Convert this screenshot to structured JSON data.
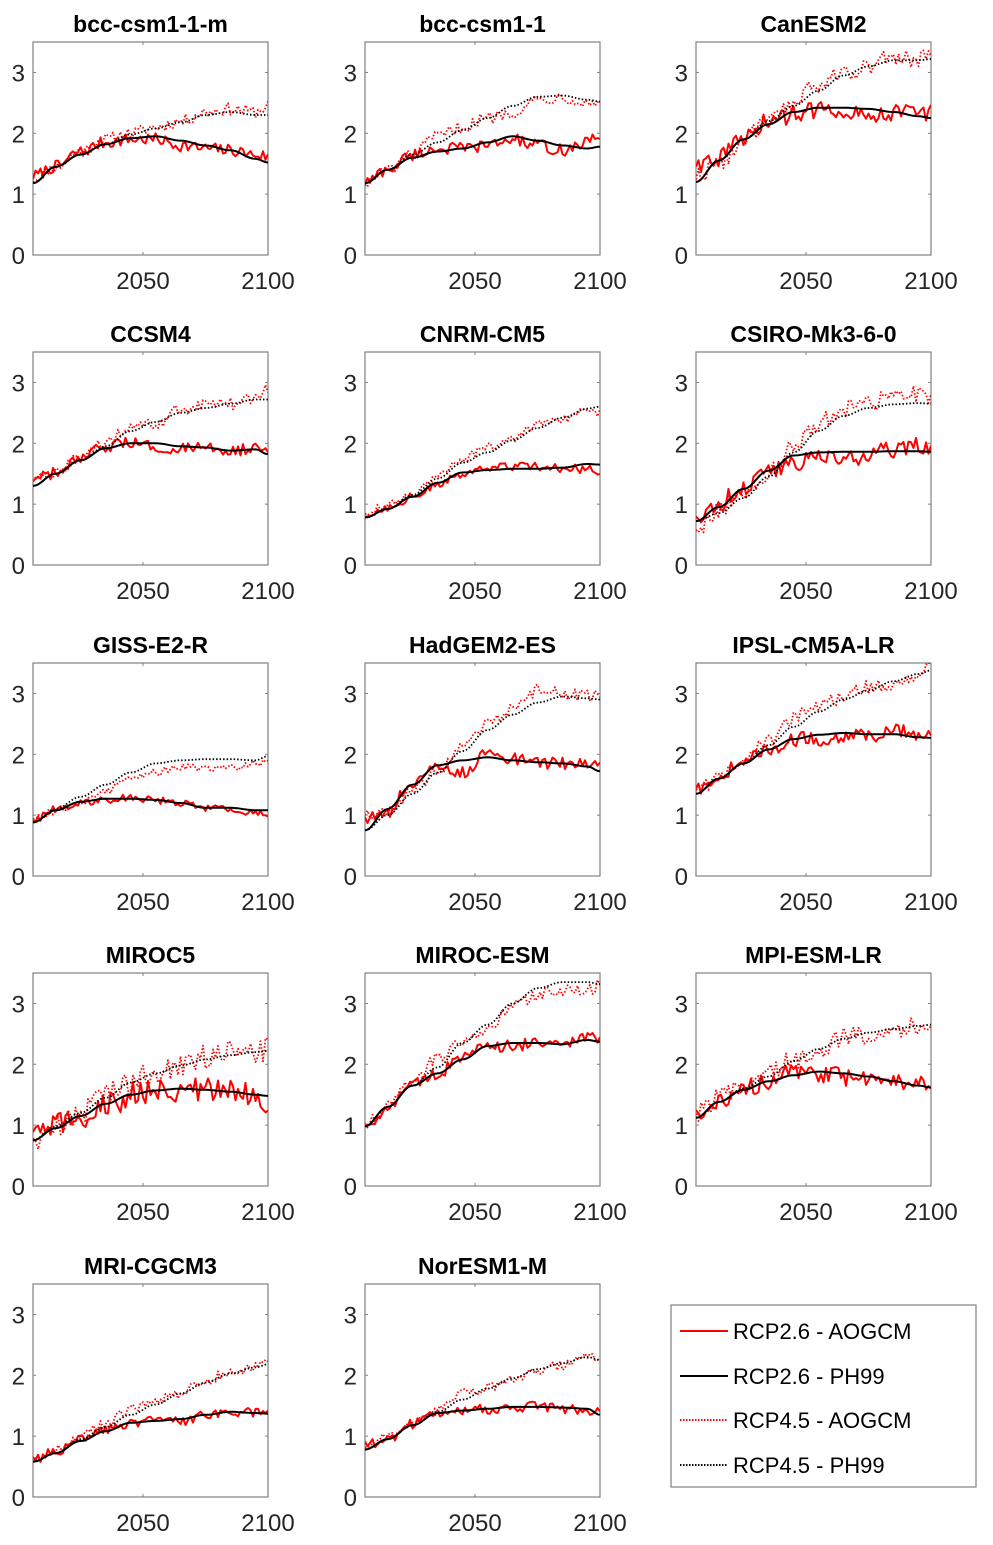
{
  "chart_data": {
    "type": "line",
    "layout": "small-multiples",
    "xlim": [
      2006,
      2100
    ],
    "ylim": [
      0,
      3.5
    ],
    "xticks": [
      2050,
      2100
    ],
    "yticks": [
      0,
      1,
      2,
      3
    ],
    "xlabel": "",
    "ylabel": "",
    "grid": false,
    "legend": {
      "placement": "bottom-right",
      "entries": [
        {
          "label": "RCP2.6 - AOGCM",
          "color": "#ff0000",
          "style": "solid"
        },
        {
          "label": "RCP2.6 - PH99",
          "color": "#000000",
          "style": "solid"
        },
        {
          "label": "RCP4.5 - AOGCM",
          "color": "#ff0000",
          "style": "dotted"
        },
        {
          "label": "RCP4.5 - PH99",
          "color": "#000000",
          "style": "dotted"
        }
      ]
    },
    "x_knots": [
      2006,
      2015,
      2025,
      2035,
      2045,
      2055,
      2065,
      2075,
      2085,
      2095,
      2100
    ],
    "panels": [
      {
        "title": "bcc-csm1-1-m",
        "noise": 0.1,
        "rcp26_ph99": [
          1.18,
          1.45,
          1.65,
          1.82,
          1.92,
          1.95,
          1.88,
          1.8,
          1.72,
          1.58,
          1.52
        ],
        "rcp26_aogcm": [
          1.3,
          1.45,
          1.7,
          1.85,
          1.9,
          1.9,
          1.8,
          1.75,
          1.72,
          1.65,
          1.62
        ],
        "rcp45_ph99": [
          1.18,
          1.45,
          1.65,
          1.82,
          1.98,
          2.08,
          2.18,
          2.3,
          2.35,
          2.3,
          2.3
        ],
        "rcp45_aogcm": [
          1.25,
          1.45,
          1.7,
          1.9,
          2.0,
          2.1,
          2.2,
          2.35,
          2.4,
          2.35,
          2.45
        ]
      },
      {
        "title": "bcc-csm1-1",
        "noise": 0.1,
        "rcp26_ph99": [
          1.18,
          1.4,
          1.6,
          1.7,
          1.75,
          1.85,
          1.95,
          1.88,
          1.8,
          1.75,
          1.78
        ],
        "rcp26_aogcm": [
          1.2,
          1.4,
          1.65,
          1.75,
          1.75,
          1.8,
          1.9,
          1.8,
          1.72,
          1.85,
          1.95
        ],
        "rcp45_ph99": [
          1.18,
          1.4,
          1.65,
          1.85,
          2.05,
          2.25,
          2.45,
          2.6,
          2.62,
          2.55,
          2.52
        ],
        "rcp45_aogcm": [
          1.2,
          1.4,
          1.65,
          1.95,
          2.1,
          2.25,
          2.35,
          2.55,
          2.6,
          2.5,
          2.5
        ]
      },
      {
        "title": "CanESM2",
        "noise": 0.15,
        "rcp26_ph99": [
          1.2,
          1.55,
          1.9,
          2.15,
          2.35,
          2.42,
          2.42,
          2.4,
          2.35,
          2.28,
          2.25
        ],
        "rcp26_aogcm": [
          1.5,
          1.6,
          1.9,
          2.2,
          2.3,
          2.4,
          2.4,
          2.3,
          2.35,
          2.35,
          2.35
        ],
        "rcp45_ph99": [
          1.2,
          1.55,
          1.9,
          2.2,
          2.45,
          2.7,
          2.95,
          3.1,
          3.2,
          3.2,
          3.22
        ],
        "rcp45_aogcm": [
          1.3,
          1.5,
          1.9,
          2.2,
          2.5,
          2.8,
          3.0,
          3.1,
          3.25,
          3.2,
          3.3
        ]
      },
      {
        "title": "CCSM4",
        "noise": 0.1,
        "rcp26_ph99": [
          1.3,
          1.5,
          1.72,
          1.92,
          2.0,
          2.0,
          1.95,
          1.93,
          1.88,
          1.9,
          1.82
        ],
        "rcp26_aogcm": [
          1.4,
          1.5,
          1.72,
          1.95,
          2.0,
          1.95,
          1.9,
          1.92,
          1.9,
          1.9,
          1.85
        ],
        "rcp45_ph99": [
          1.3,
          1.5,
          1.72,
          1.95,
          2.2,
          2.35,
          2.5,
          2.58,
          2.65,
          2.72,
          2.72
        ],
        "rcp45_aogcm": [
          1.4,
          1.5,
          1.75,
          2.0,
          2.25,
          2.3,
          2.55,
          2.65,
          2.65,
          2.75,
          2.9
        ]
      },
      {
        "title": "CNRM-CM5",
        "noise": 0.07,
        "rcp26_ph99": [
          0.78,
          0.92,
          1.12,
          1.35,
          1.52,
          1.56,
          1.58,
          1.58,
          1.6,
          1.66,
          1.65
        ],
        "rcp26_aogcm": [
          0.8,
          0.95,
          1.12,
          1.3,
          1.5,
          1.58,
          1.62,
          1.62,
          1.58,
          1.58,
          1.55
        ],
        "rcp45_ph99": [
          0.78,
          0.92,
          1.15,
          1.42,
          1.68,
          1.85,
          2.05,
          2.25,
          2.42,
          2.57,
          2.6
        ],
        "rcp45_aogcm": [
          0.85,
          0.98,
          1.15,
          1.45,
          1.75,
          1.95,
          2.05,
          2.3,
          2.4,
          2.58,
          2.5
        ]
      },
      {
        "title": "CSIRO-Mk3-6-0",
        "noise": 0.15,
        "rcp26_ph99": [
          0.72,
          0.95,
          1.25,
          1.55,
          1.8,
          1.85,
          1.86,
          1.86,
          1.87,
          1.87,
          1.86
        ],
        "rcp26_aogcm": [
          0.8,
          1.0,
          1.3,
          1.55,
          1.7,
          1.75,
          1.75,
          1.8,
          1.9,
          2.0,
          1.9
        ],
        "rcp45_ph99": [
          0.72,
          0.85,
          1.1,
          1.45,
          1.85,
          2.2,
          2.45,
          2.58,
          2.64,
          2.66,
          2.65
        ],
        "rcp45_aogcm": [
          0.6,
          0.9,
          1.15,
          1.5,
          1.95,
          2.35,
          2.55,
          2.65,
          2.75,
          2.8,
          2.75
        ]
      },
      {
        "title": "GISS-E2-R",
        "noise": 0.06,
        "rcp26_ph99": [
          0.88,
          1.08,
          1.22,
          1.27,
          1.27,
          1.25,
          1.2,
          1.12,
          1.12,
          1.08,
          1.08
        ],
        "rcp26_aogcm": [
          0.92,
          1.1,
          1.2,
          1.25,
          1.3,
          1.25,
          1.2,
          1.12,
          1.1,
          1.05,
          1.0
        ],
        "rcp45_ph99": [
          0.88,
          1.1,
          1.3,
          1.5,
          1.7,
          1.85,
          1.9,
          1.92,
          1.92,
          1.9,
          1.97
        ],
        "rcp45_aogcm": [
          0.95,
          1.05,
          1.2,
          1.4,
          1.6,
          1.7,
          1.8,
          1.75,
          1.78,
          1.85,
          1.9
        ]
      },
      {
        "title": "HadGEM2-ES",
        "noise": 0.1,
        "rcp26_ph99": [
          0.75,
          1.1,
          1.5,
          1.82,
          1.9,
          1.95,
          1.9,
          1.87,
          1.85,
          1.8,
          1.72
        ],
        "rcp26_aogcm": [
          0.95,
          1.05,
          1.55,
          1.8,
          1.7,
          2.0,
          1.92,
          1.85,
          1.85,
          1.85,
          1.78
        ],
        "rcp45_ph99": [
          0.75,
          1.0,
          1.35,
          1.7,
          2.05,
          2.4,
          2.65,
          2.85,
          2.95,
          2.92,
          2.9
        ],
        "rcp45_aogcm": [
          1.0,
          1.05,
          1.4,
          1.75,
          2.1,
          2.5,
          2.75,
          3.05,
          3.0,
          2.95,
          3.0
        ]
      },
      {
        "title": "IPSL-CM5A-LR",
        "noise": 0.12,
        "rcp26_ph99": [
          1.35,
          1.6,
          1.85,
          2.08,
          2.25,
          2.32,
          2.35,
          2.33,
          2.33,
          2.28,
          2.27
        ],
        "rcp26_aogcm": [
          1.4,
          1.65,
          1.9,
          2.05,
          2.25,
          2.25,
          2.3,
          2.3,
          2.4,
          2.3,
          2.3
        ],
        "rcp45_ph99": [
          1.35,
          1.6,
          1.85,
          2.15,
          2.45,
          2.7,
          2.9,
          3.05,
          3.2,
          3.32,
          3.38
        ],
        "rcp45_aogcm": [
          1.4,
          1.6,
          1.9,
          2.2,
          2.6,
          2.8,
          2.95,
          3.1,
          3.15,
          3.25,
          3.45
        ]
      },
      {
        "title": "MIROC5",
        "noise": 0.22,
        "rcp26_ph99": [
          0.75,
          0.95,
          1.15,
          1.35,
          1.5,
          1.57,
          1.6,
          1.58,
          1.55,
          1.5,
          1.48
        ],
        "rcp26_aogcm": [
          0.8,
          1.0,
          1.15,
          1.3,
          1.5,
          1.55,
          1.6,
          1.55,
          1.55,
          1.5,
          1.4
        ],
        "rcp45_ph99": [
          0.75,
          0.98,
          1.2,
          1.45,
          1.7,
          1.85,
          1.98,
          2.08,
          2.15,
          2.2,
          2.22
        ],
        "rcp45_aogcm": [
          0.75,
          1.0,
          1.2,
          1.5,
          1.7,
          1.85,
          2.0,
          2.1,
          2.2,
          2.2,
          2.3
        ]
      },
      {
        "title": "MIROC-ESM",
        "noise": 0.1,
        "rcp26_ph99": [
          0.98,
          1.3,
          1.65,
          1.85,
          2.08,
          2.3,
          2.35,
          2.35,
          2.33,
          2.4,
          2.37
        ],
        "rcp26_aogcm": [
          0.95,
          1.3,
          1.7,
          1.85,
          2.1,
          2.28,
          2.3,
          2.35,
          2.35,
          2.45,
          2.4
        ],
        "rcp45_ph99": [
          0.98,
          1.3,
          1.65,
          1.95,
          2.35,
          2.65,
          3.0,
          3.25,
          3.35,
          3.35,
          3.32
        ],
        "rcp45_aogcm": [
          1.0,
          1.3,
          1.7,
          2.1,
          2.35,
          2.55,
          2.95,
          3.15,
          3.2,
          3.2,
          3.3
        ]
      },
      {
        "title": "MPI-ESM-LR",
        "noise": 0.16,
        "rcp26_ph99": [
          1.12,
          1.38,
          1.58,
          1.72,
          1.82,
          1.88,
          1.85,
          1.8,
          1.72,
          1.65,
          1.62
        ],
        "rcp26_aogcm": [
          1.15,
          1.4,
          1.6,
          1.75,
          1.85,
          1.8,
          1.8,
          1.75,
          1.7,
          1.7,
          1.65
        ],
        "rcp45_ph99": [
          1.12,
          1.38,
          1.6,
          1.8,
          2.05,
          2.25,
          2.42,
          2.52,
          2.58,
          2.63,
          2.65
        ],
        "rcp45_aogcm": [
          1.2,
          1.45,
          1.6,
          1.9,
          2.05,
          2.25,
          2.45,
          2.5,
          2.6,
          2.6,
          2.7
        ]
      },
      {
        "title": "MRI-CGCM3",
        "noise": 0.08,
        "rcp26_ph99": [
          0.58,
          0.72,
          0.92,
          1.08,
          1.22,
          1.25,
          1.28,
          1.35,
          1.4,
          1.38,
          1.37
        ],
        "rcp26_aogcm": [
          0.6,
          0.75,
          0.95,
          1.1,
          1.2,
          1.25,
          1.25,
          1.35,
          1.4,
          1.38,
          1.35
        ],
        "rcp45_ph99": [
          0.58,
          0.72,
          0.95,
          1.15,
          1.35,
          1.52,
          1.7,
          1.88,
          2.03,
          2.13,
          2.18
        ],
        "rcp45_aogcm": [
          0.6,
          0.78,
          1.0,
          1.2,
          1.45,
          1.6,
          1.7,
          1.92,
          2.05,
          2.15,
          2.3
        ]
      },
      {
        "title": "NorESM1-M",
        "noise": 0.08,
        "rcp26_ph99": [
          0.78,
          0.95,
          1.18,
          1.38,
          1.42,
          1.45,
          1.48,
          1.48,
          1.47,
          1.45,
          1.35
        ],
        "rcp26_aogcm": [
          0.85,
          0.95,
          1.2,
          1.38,
          1.42,
          1.45,
          1.45,
          1.5,
          1.45,
          1.42,
          1.4
        ],
        "rcp45_ph99": [
          0.78,
          0.95,
          1.18,
          1.4,
          1.6,
          1.78,
          1.95,
          2.1,
          2.2,
          2.3,
          2.25
        ],
        "rcp45_aogcm": [
          0.78,
          0.98,
          1.2,
          1.45,
          1.7,
          1.8,
          1.95,
          2.1,
          2.15,
          2.3,
          2.25
        ]
      }
    ]
  }
}
